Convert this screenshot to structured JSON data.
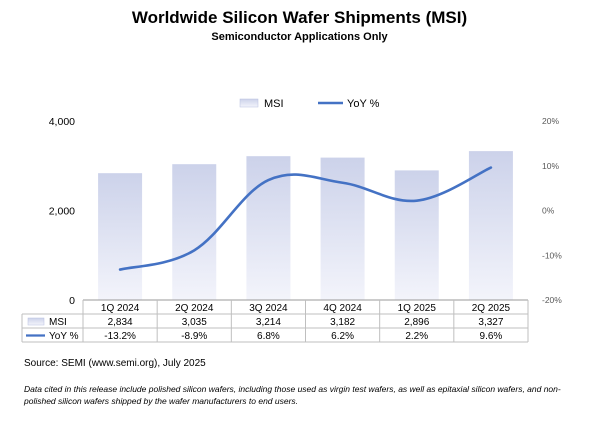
{
  "chart_data": {
    "type": "bar",
    "title": "Worldwide Silicon Wafer Shipments (MSI)",
    "subtitle": "Semiconductor Applications Only",
    "categories": [
      "1Q 2024",
      "2Q 2024",
      "3Q 2024",
      "4Q 2024",
      "1Q 2025",
      "2Q 2025"
    ],
    "series": [
      {
        "name": "MSI",
        "type": "bar",
        "axis": "left",
        "values": [
          2834,
          3035,
          3214,
          3182,
          2896,
          3327
        ],
        "labels": [
          "2,834",
          "3,035",
          "3,214",
          "3,182",
          "2,896",
          "3,327"
        ]
      },
      {
        "name": "YoY %",
        "type": "line",
        "axis": "right",
        "values": [
          -13.2,
          -8.9,
          6.8,
          6.2,
          2.2,
          9.6
        ],
        "labels": [
          "-13.2%",
          "-8.9%",
          "6.8%",
          "6.2%",
          "2.2%",
          "9.6%"
        ]
      }
    ],
    "y_left": {
      "ylim": [
        0,
        4000
      ],
      "ticks": [
        0,
        2000,
        4000
      ],
      "tick_labels": [
        "0",
        "2,000",
        "4,000"
      ]
    },
    "y_right": {
      "ylim": [
        -20,
        20
      ],
      "ticks": [
        20,
        10,
        0,
        -10,
        -20
      ],
      "tick_labels": [
        "20%",
        "10%",
        "0%",
        "-10%",
        "-20%"
      ]
    },
    "legend": {
      "position": "top",
      "entries": [
        "MSI",
        "YoY %"
      ]
    },
    "data_table": true,
    "grid": false,
    "colors": {
      "bar_top": "#ccd2ea",
      "bar_bottom": "#f3f4fb",
      "line": "#4472c4",
      "axis": "#bfbfbf"
    }
  },
  "footer": {
    "source": "Source: SEMI (www.semi.org), July 2025",
    "note": "Data cited in this release include polished silicon wafers, including those used as virgin test wafers, as well as epitaxial silicon wafers, and non-polished silicon wafers shipped by the wafer manufacturers to end users."
  }
}
